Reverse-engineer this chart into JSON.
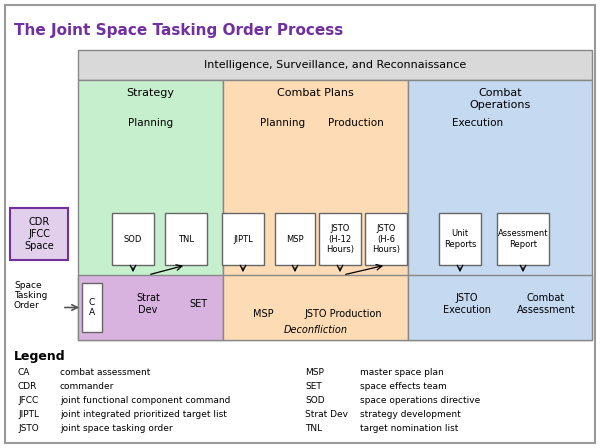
{
  "title": "The Joint Space Tasking Order Process",
  "title_color": "#7030A0",
  "bg_color": "#FFFFFF",
  "border_color": "#808080",
  "isr_label": "Intelligence, Surveillance, and Reconnaissance",
  "isr_bg": "#D9D9D9",
  "strategy_label": "Strategy",
  "strategy_bg": "#C6EFCE",
  "combat_plans_label": "Combat Plans",
  "combat_plans_bg": "#FDDCB5",
  "combat_ops_label": "Combat\nOperations",
  "combat_ops_bg": "#C5D9F1",
  "planning_strat_label": "Planning",
  "planning_cp_label": "Planning",
  "production_label": "Production",
  "execution_label": "Execution",
  "cdr_label": "CDR\nJFCC\nSpace",
  "cdr_bg": "#E2CFEC",
  "cdr_border": "#7030A0",
  "space_tasking_label": "Space\nTasking\nOrder",
  "bottom_strat_bg": "#D9B3E0",
  "bottom_cp_bg": "#FDDCB5",
  "bottom_co_bg": "#C5D9F1",
  "legend_title": "Legend",
  "legend_items_left": [
    [
      "CA",
      "combat assessment"
    ],
    [
      "CDR",
      "commander"
    ],
    [
      "JFCC",
      "joint functional component command"
    ],
    [
      "JIPTL",
      "joint integrated prioritized target list"
    ],
    [
      "JSTO",
      "joint space tasking order"
    ]
  ],
  "legend_items_right": [
    [
      "MSP",
      "master space plan"
    ],
    [
      "SET",
      "space effects team"
    ],
    [
      "SOD",
      "space operations directive"
    ],
    [
      "Strat Dev",
      "strategy development"
    ],
    [
      "TNL",
      "target nomination list"
    ]
  ]
}
